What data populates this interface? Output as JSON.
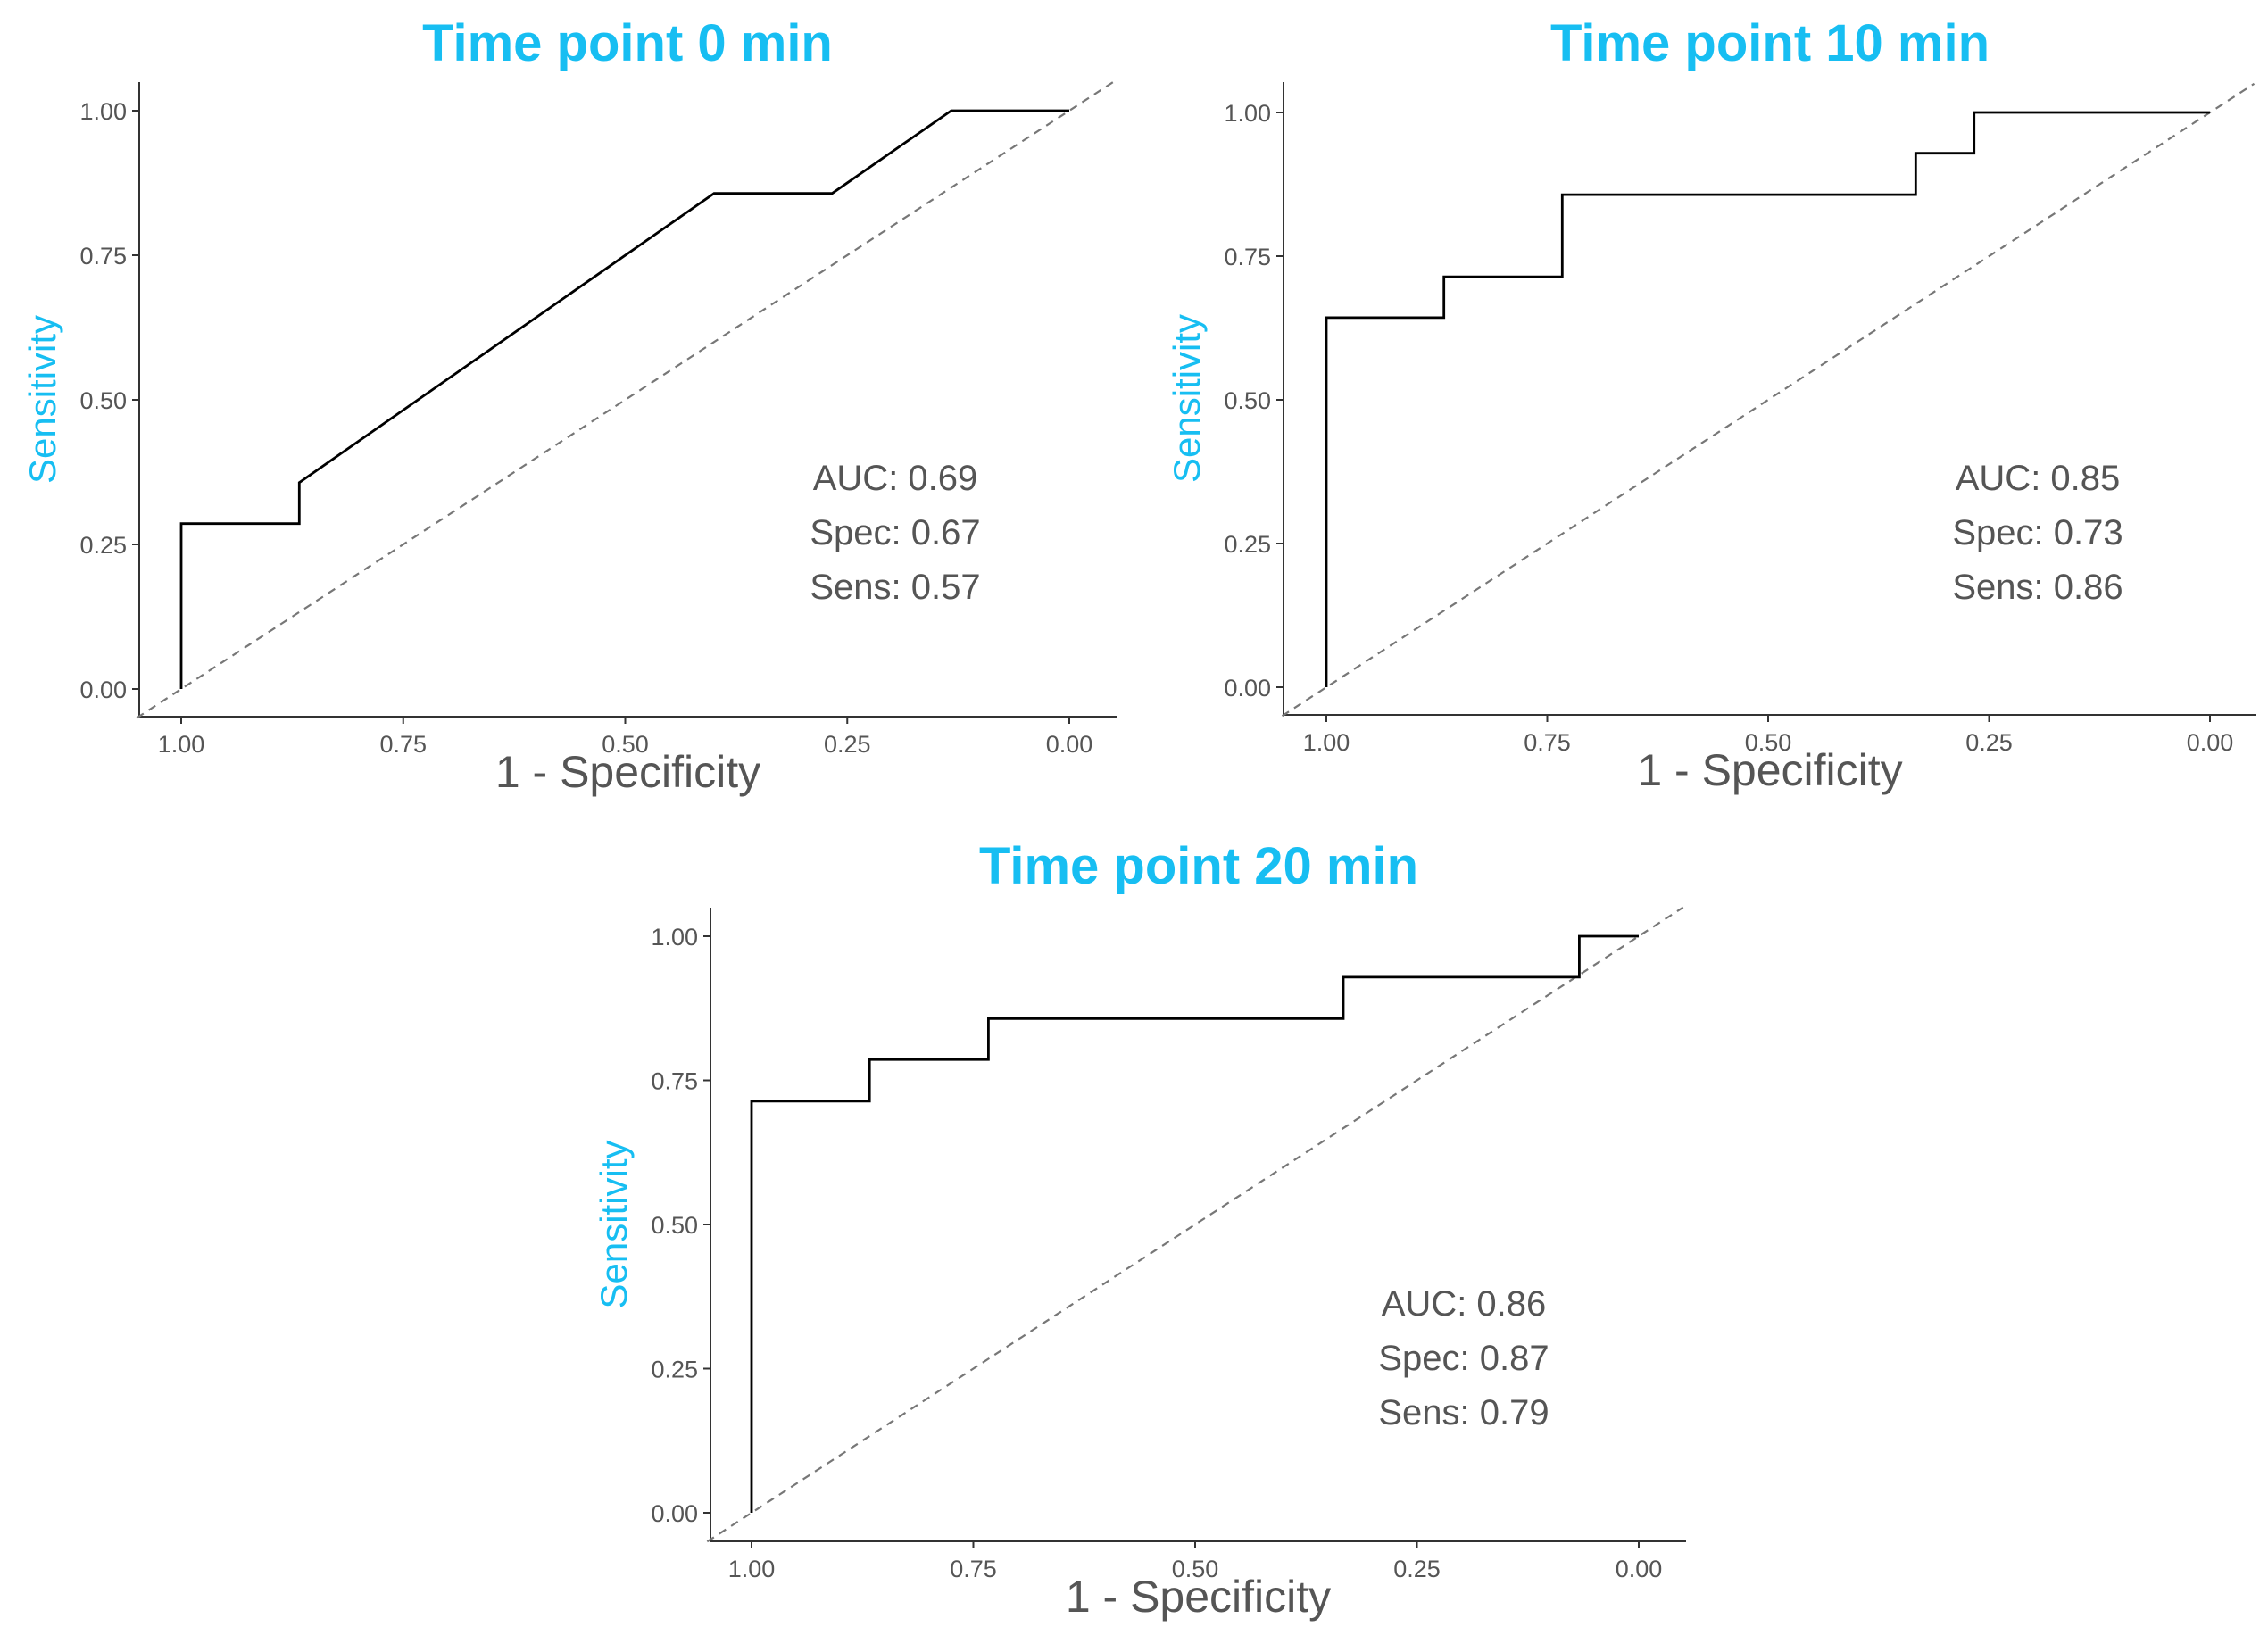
{
  "colors": {
    "title": "#17bef2",
    "axis_title": "#17bef2",
    "roc_line": "#000000",
    "diagonal": "#777777",
    "text": "#555555"
  },
  "chart_data": [
    {
      "type": "line",
      "title": "Time point 0 min",
      "xlabel": "1 - Specificity",
      "ylabel": "Sensitivity",
      "x_reversed": true,
      "xlim": [
        1.0,
        0.0
      ],
      "ylim": [
        0.0,
        1.0
      ],
      "xticks": [
        "1.00",
        "0.75",
        "0.50",
        "0.25",
        "0.00"
      ],
      "yticks": [
        "0.00",
        "0.25",
        "0.50",
        "0.75",
        "1.00"
      ],
      "grid": false,
      "reference_line": "diagonal",
      "series": [
        {
          "x": [
            1.0,
            1.0,
            0.867,
            0.867,
            0.4,
            0.267,
            0.133,
            0.0
          ],
          "y": [
            0.0,
            0.286,
            0.286,
            0.357,
            0.857,
            0.857,
            1.0,
            1.0
          ]
        }
      ],
      "annotations": [
        "AUC: 0.69",
        "Spec: 0.67",
        "Sens: 0.57"
      ]
    },
    {
      "type": "line",
      "title": "Time point 10 min",
      "xlabel": "1 - Specificity",
      "ylabel": "Sensitivity",
      "x_reversed": true,
      "xlim": [
        1.0,
        0.0
      ],
      "ylim": [
        0.0,
        1.0
      ],
      "xticks": [
        "1.00",
        "0.75",
        "0.50",
        "0.25",
        "0.00"
      ],
      "yticks": [
        "0.00",
        "0.25",
        "0.50",
        "0.75",
        "1.00"
      ],
      "grid": false,
      "reference_line": "diagonal",
      "series": [
        {
          "x": [
            1.0,
            1.0,
            0.867,
            0.867,
            0.733,
            0.733,
            0.333,
            0.333,
            0.267,
            0.267,
            0.0
          ],
          "y": [
            0.0,
            0.643,
            0.643,
            0.714,
            0.714,
            0.857,
            0.857,
            0.929,
            0.929,
            1.0,
            1.0
          ]
        }
      ],
      "annotations": [
        "AUC: 0.85",
        "Spec: 0.73",
        "Sens: 0.86"
      ]
    },
    {
      "type": "line",
      "title": "Time point 20 min",
      "xlabel": "1 - Specificity",
      "ylabel": "Sensitivity",
      "x_reversed": true,
      "xlim": [
        1.0,
        0.0
      ],
      "ylim": [
        0.0,
        1.0
      ],
      "xticks": [
        "1.00",
        "0.75",
        "0.50",
        "0.25",
        "0.00"
      ],
      "yticks": [
        "0.00",
        "0.25",
        "0.50",
        "0.75",
        "1.00"
      ],
      "grid": false,
      "reference_line": "diagonal",
      "series": [
        {
          "x": [
            1.0,
            1.0,
            0.867,
            0.867,
            0.733,
            0.733,
            0.333,
            0.333,
            0.067,
            0.067,
            0.0
          ],
          "y": [
            0.0,
            0.714,
            0.714,
            0.786,
            0.786,
            0.857,
            0.857,
            0.929,
            0.929,
            1.0,
            1.0
          ]
        }
      ],
      "annotations": [
        "AUC: 0.86",
        "Spec: 0.87",
        "Sens: 0.79"
      ]
    }
  ]
}
